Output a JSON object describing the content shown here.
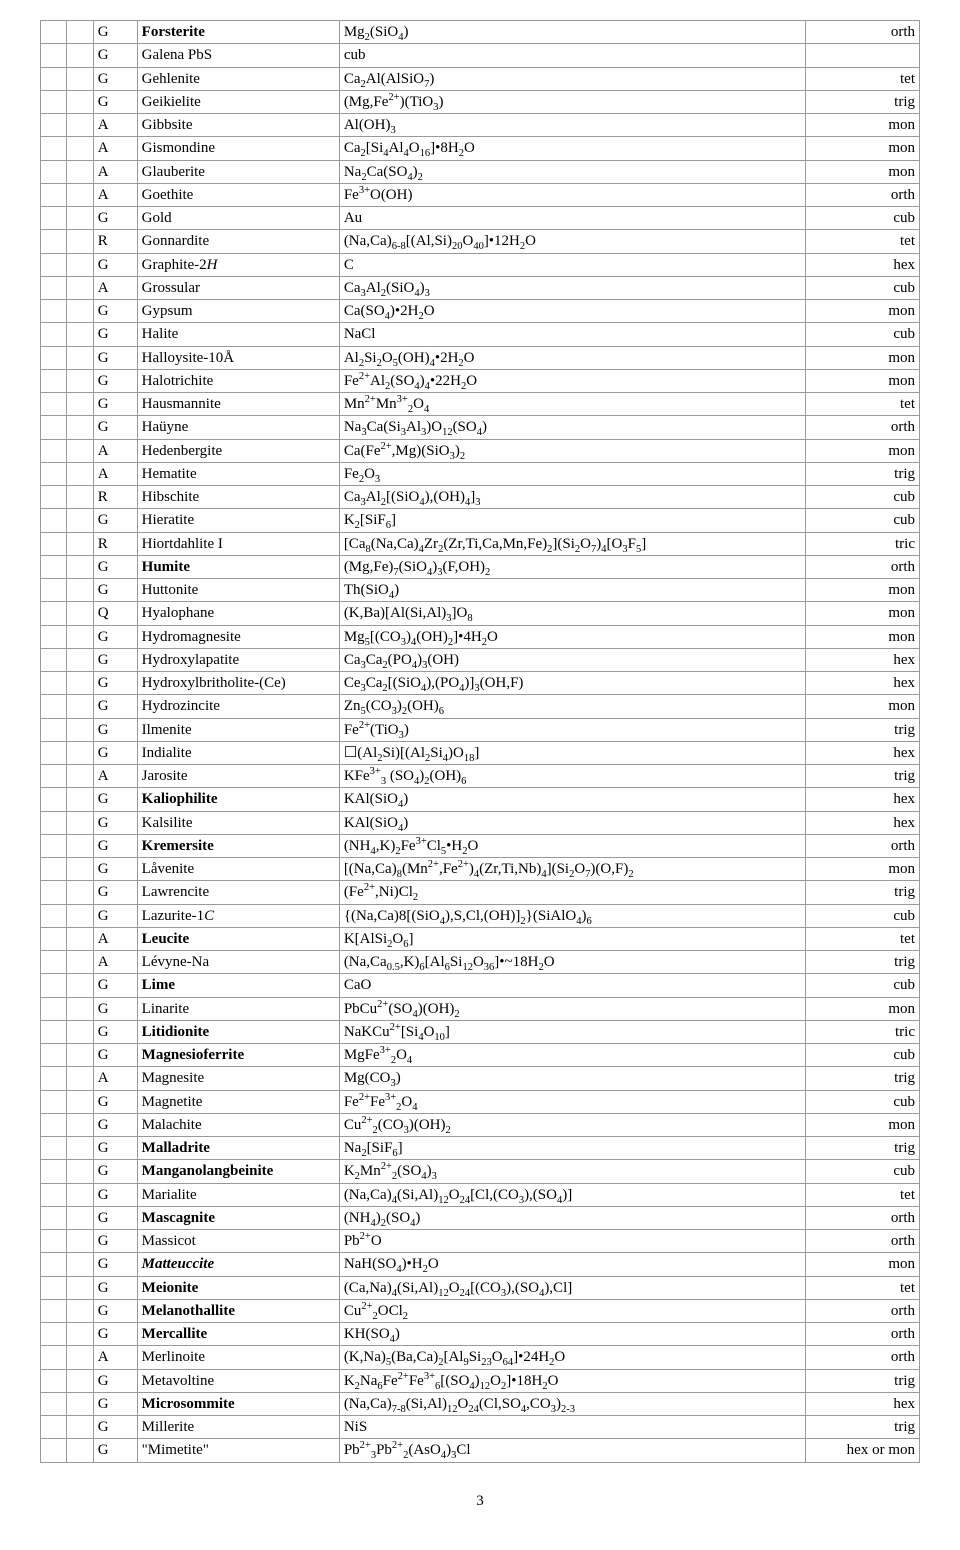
{
  "page_number": "3",
  "rows": [
    {
      "c2": "G",
      "c3": "Forsterite",
      "c3_bold": true,
      "c4": "Mg<sub>2</sub>(SiO<sub>4</sub>)",
      "c5": "orth"
    },
    {
      "c2": "G",
      "c3": "Galena   PbS",
      "c4": "cub",
      "c5": ""
    },
    {
      "c2": "G",
      "c3": "Gehlenite",
      "c4": "Ca<sub>2</sub>Al(AlSiO<sub>7</sub>)",
      "c5": "tet"
    },
    {
      "c2": "G",
      "c3": "Geikielite",
      "c4": "(Mg,Fe<sup>2+</sup>)(TiO<sub>3</sub>)",
      "c5": "trig"
    },
    {
      "c2": "A",
      "c3": "Gibbsite",
      "c4": "Al(OH)<sub>3</sub>",
      "c5": "mon"
    },
    {
      "c2": "A",
      "c3": "Gismondine",
      "c4": "Ca<sub>2</sub>[Si<sub>4</sub>Al<sub>4</sub>O<sub>16</sub>]•8H<sub>2</sub>O",
      "c5": "mon"
    },
    {
      "c2": "A",
      "c3": "Glauberite",
      "c4": "Na<sub>2</sub>Ca(SO<sub>4</sub>)<sub>2</sub>",
      "c5": "mon"
    },
    {
      "c2": "A",
      "c3": "Goethite",
      "c4": "Fe<sup>3+</sup>O(OH)",
      "c5": "orth"
    },
    {
      "c2": "G",
      "c3": "Gold",
      "c4": "Au",
      "c5": "cub"
    },
    {
      "c2": "R",
      "c3": "Gonnardite",
      "c4": "(Na,Ca)<sub>6-8</sub>[(Al,Si)<sub>20</sub>O<sub>40</sub>]•12H<sub>2</sub>O",
      "c5": "tet"
    },
    {
      "c2": "G",
      "c3": "Graphite-2<i>H</i>",
      "c4": "C",
      "c5": "hex"
    },
    {
      "c2": "A",
      "c3": "Grossular",
      "c4": "Ca<sub>3</sub>Al<sub>2</sub>(SiO<sub>4</sub>)<sub>3</sub>",
      "c5": "cub"
    },
    {
      "c2": "G",
      "c3": "Gypsum",
      "c4": "Ca(SO<sub>4</sub>)•2H<sub>2</sub>O",
      "c5": "mon"
    },
    {
      "c2": "G",
      "c3": "Halite",
      "c4": "NaCl",
      "c5": "cub"
    },
    {
      "c2": "G",
      "c3": "Halloysite-10Å",
      "c4": "Al<sub>2</sub>Si<sub>2</sub>O<sub>5</sub>(OH)<sub>4</sub>•2H<sub>2</sub>O",
      "c5": "mon"
    },
    {
      "c2": "G",
      "c3": "Halotrichite",
      "c4": "Fe<sup>2+</sup>Al<sub>2</sub>(SO<sub>4</sub>)<sub>4</sub>•22H<sub>2</sub>O",
      "c5": "mon"
    },
    {
      "c2": "G",
      "c3": "Hausmannite",
      "c4": "Mn<sup>2+</sup>Mn<sup>3+</sup><sub>2</sub>O<sub>4</sub>",
      "c5": "tet"
    },
    {
      "c2": "G",
      "c3": "Haüyne",
      "c4": "Na<sub>3</sub>Ca(Si<sub>3</sub>Al<sub>3</sub>)O<sub>12</sub>(SO<sub>4</sub>)",
      "c5": "orth"
    },
    {
      "c2": "A",
      "c3": "Hedenbergite",
      "c4": "Ca(Fe<sup>2+</sup>,Mg)(SiO<sub>3</sub>)<sub>2</sub>",
      "c5": "mon"
    },
    {
      "c2": "A",
      "c3": "Hematite",
      "c4": "Fe<sub>2</sub>O<sub>3</sub>",
      "c5": "trig"
    },
    {
      "c2": "R",
      "c3": "Hibschite",
      "c4": "Ca<sub>3</sub>Al<sub>2</sub>[(SiO<sub>4</sub>),(OH)<sub>4</sub>]<sub>3</sub>",
      "c5": "cub"
    },
    {
      "c2": "G",
      "c3": "Hieratite",
      "c4": "K<sub>2</sub>[SiF<sub>6</sub>]",
      "c5": "cub"
    },
    {
      "c2": "R",
      "c3": "Hiortdahlite I",
      "c4": "[Ca<sub>8</sub>(Na,Ca)<sub>4</sub>Zr<sub>2</sub>(Zr,Ti,Ca,Mn,Fe)<sub>2</sub>](Si<sub>2</sub>O<sub>7</sub>)<sub>4</sub>[O<sub>3</sub>F<sub>5</sub>]",
      "c5": "tric"
    },
    {
      "c2": "G",
      "c3": "Humite",
      "c3_bold": true,
      "c4": "(Mg,Fe)<sub>7</sub>(SiO<sub>4</sub>)<sub>3</sub>(F,OH)<sub>2</sub>",
      "c5": "orth"
    },
    {
      "c2": "G",
      "c3": "Huttonite",
      "c4": "Th(SiO<sub>4</sub>)",
      "c5": "mon"
    },
    {
      "c2": "Q",
      "c3": "Hyalophane",
      "c4": "(K,Ba)[Al(Si,Al)<sub>3</sub>]O<sub>8</sub>",
      "c5": "mon"
    },
    {
      "c2": "G",
      "c3": "Hydromagnesite",
      "c4": "Mg<sub>5</sub>[(CO<sub>3</sub>)<sub>4</sub>(OH)<sub>2</sub>]•4H<sub>2</sub>O",
      "c5": "mon"
    },
    {
      "c2": "G",
      "c3": "Hydroxylapatite",
      "c4": "Ca<sub>3</sub>Ca<sub>2</sub>(PO<sub>4</sub>)<sub>3</sub>(OH)",
      "c5": "hex"
    },
    {
      "c2": "G",
      "c3": "Hydroxylbritholite-(Ce)",
      "c4": "Ce<sub>3</sub>Ca<sub>2</sub>[(SiO<sub>4</sub>),(PO<sub>4</sub>)]<sub>3</sub>(OH,F)",
      "c5": "hex"
    },
    {
      "c2": "G",
      "c3": "Hydrozincite",
      "c4": "Zn<sub>5</sub>(CO<sub>3</sub>)<sub>2</sub>(OH)<sub>6</sub>",
      "c5": "mon"
    },
    {
      "c2": "G",
      "c3": "Ilmenite",
      "c4": "Fe<sup>2+</sup>(TiO<sub>3</sub>)",
      "c5": "trig"
    },
    {
      "c2": "G",
      "c3": "Indialite",
      "c4": "&#x2610;(Al<sub>2</sub>Si)[(Al<sub>2</sub>Si<sub>4</sub>)O<sub>18</sub>]",
      "c5": "hex"
    },
    {
      "c2": "A",
      "c3": "Jarosite",
      "c4": "KFe<sup>3+</sup><sub>3</sub> (SO<sub>4</sub>)<sub>2</sub>(OH)<sub>6</sub>",
      "c5": "trig"
    },
    {
      "c2": "G",
      "c3": "Kaliophilite",
      "c3_bold": true,
      "c4": "KAl(SiO<sub>4</sub>)",
      "c5": "hex"
    },
    {
      "c2": "G",
      "c3": "Kalsilite",
      "c4": "KAl(SiO<sub>4</sub>)",
      "c5": "hex"
    },
    {
      "c2": "G",
      "c3": "Kremersite",
      "c3_bold": true,
      "c4": "(NH<sub>4</sub>,K)<sub>2</sub>Fe<sup>3+</sup>Cl<sub>5</sub>•H<sub>2</sub>O",
      "c5": "orth"
    },
    {
      "c2": "G",
      "c3": "Låvenite",
      "c4": "[(Na,Ca)<sub>8</sub>(Mn<sup>2+</sup>,Fe<sup>2+</sup>)<sub>4</sub>(Zr,Ti,Nb)<sub>4</sub>](Si<sub>2</sub>O<sub>7</sub>)(O,F)<sub>2</sub>",
      "c5": "mon"
    },
    {
      "c2": "G",
      "c3": "Lawrencite",
      "c4": "(Fe<sup>2+</sup>,Ni)Cl<sub>2</sub>",
      "c5": "trig"
    },
    {
      "c2": "G",
      "c3": "Lazurite-1<i>C</i>",
      "c4": "{(Na,Ca)8[(SiO<sub>4</sub>),S,Cl,(OH)]<sub>2</sub>}(SiAlO<sub>4</sub>)<sub>6</sub>",
      "c5": "cub"
    },
    {
      "c2": "A",
      "c3": "Leucite",
      "c3_bold": true,
      "c4": "K[AlSi<sub>2</sub>O<sub>6</sub>]",
      "c5": "tet"
    },
    {
      "c2": "A",
      "c3": "Lévyne-Na",
      "c4": "(Na,Ca<sub>0.5</sub>,K)<sub>6</sub>[Al<sub>6</sub>Si<sub>12</sub>O<sub>36</sub>]•~18H<sub>2</sub>O",
      "c5": "trig"
    },
    {
      "c2": "G",
      "c3": "Lime",
      "c3_bold": true,
      "c4": "CaO",
      "c5": "cub"
    },
    {
      "c2": "G",
      "c3": "Linarite",
      "c4": "PbCu<sup>2+</sup>(SO<sub>4</sub>)(OH)<sub>2</sub>",
      "c5": "mon"
    },
    {
      "c2": "G",
      "c3": "Litidionite",
      "c3_bold": true,
      "c4": "NaKCu<sup>2+</sup>[Si<sub>4</sub>O<sub>10</sub>]",
      "c5": "tric"
    },
    {
      "c2": "G",
      "c3": "Magnesioferrite",
      "c3_bold": true,
      "c4": "MgFe<sup>3+</sup><sub>2</sub>O<sub>4</sub>",
      "c5": "cub"
    },
    {
      "c2": "A",
      "c3": "Magnesite",
      "c4": "Mg(CO<sub>3</sub>)",
      "c5": "trig"
    },
    {
      "c2": "G",
      "c3": "Magnetite",
      "c4": "Fe<sup>2+</sup>Fe<sup>3+</sup><sub>2</sub>O<sub>4</sub>",
      "c5": "cub"
    },
    {
      "c2": "G",
      "c3": "Malachite",
      "c4": "Cu<sup>2+</sup><sub>2</sub>(CO<sub>3</sub>)(OH)<sub>2</sub>",
      "c5": "mon"
    },
    {
      "c2": "G",
      "c3": "Malladrite",
      "c3_bold": true,
      "c4": "Na<sub>2</sub>[SiF<sub>6</sub>]",
      "c5": "trig"
    },
    {
      "c2": "G",
      "c3": "Manganolangbeinite",
      "c3_bold": true,
      "c4": "K<sub>2</sub>Mn<sup>2+</sup><sub>2</sub>(SO<sub>4</sub>)<sub>3</sub>",
      "c5": "cub"
    },
    {
      "c2": "G",
      "c3": "Marialite",
      "c4": "(Na,Ca)<sub>4</sub>(Si,Al)<sub>12</sub>O<sub>24</sub>[Cl,(CO<sub>3</sub>),(SO<sub>4</sub>)]",
      "c5": "tet"
    },
    {
      "c2": "G",
      "c3": "Mascagnite",
      "c3_bold": true,
      "c4": "(NH<sub>4</sub>)<sub>2</sub>(SO<sub>4</sub>)",
      "c5": "orth"
    },
    {
      "c2": "G",
      "c3": "Massicot",
      "c4": "Pb<sup>2+</sup>O",
      "c5": "orth"
    },
    {
      "c2": "G",
      "c3": "Matteuccite",
      "c3_bold": true,
      "c3_italic": true,
      "c4": "NaH(SO<sub>4</sub>)•H<sub>2</sub>O",
      "c5": "mon"
    },
    {
      "c2": "G",
      "c3": "Meionite",
      "c3_bold": true,
      "c4": "(Ca,Na)<sub>4</sub>(Si,Al)<sub>12</sub>O<sub>24</sub>[(CO<sub>3</sub>),(SO<sub>4</sub>),Cl]",
      "c5": "tet"
    },
    {
      "c2": "G",
      "c3": "Melanothallite",
      "c3_bold": true,
      "c4": "Cu<sup>2+</sup><sub>2</sub>OCl<sub>2</sub>",
      "c5": "orth"
    },
    {
      "c2": "G",
      "c3": "Mercallite",
      "c3_bold": true,
      "c4": "KH(SO<sub>4</sub>)",
      "c5": "orth"
    },
    {
      "c2": "A",
      "c3": "Merlinoite",
      "c4": "(K,Na)<sub>5</sub>(Ba,Ca)<sub>2</sub>[Al<sub>9</sub>Si<sub>23</sub>O<sub>64</sub>]•24H<sub>2</sub>O",
      "c5": "orth"
    },
    {
      "c2": "G",
      "c3": "Metavoltine",
      "c4": "K<sub>2</sub>Na<sub>6</sub>Fe<sup>2+</sup>Fe<sup>3+</sup><sub>6</sub>[(SO<sub>4</sub>)<sub>12</sub>O<sub>2</sub>]•18H<sub>2</sub>O",
      "c5": "trig"
    },
    {
      "c2": "G",
      "c3": "Microsommite",
      "c3_bold": true,
      "c4": "(Na,Ca)<sub>7-8</sub>(Si,Al)<sub>12</sub>O<sub>24</sub>(Cl,SO<sub>4</sub>,CO<sub>3</sub>)<sub>2-3</sub>",
      "c5": "hex"
    },
    {
      "c2": "G",
      "c3": "Millerite",
      "c4": "NiS",
      "c5": "trig"
    },
    {
      "c2": "G",
      "c3": "\"Mimetite\"",
      "c4": "Pb<sup>2+</sup><sub>3</sub>Pb<sup>2+</sup><sub>2</sub>(AsO<sub>4</sub>)<sub>3</sub>Cl",
      "c5": "hex or mon"
    }
  ]
}
